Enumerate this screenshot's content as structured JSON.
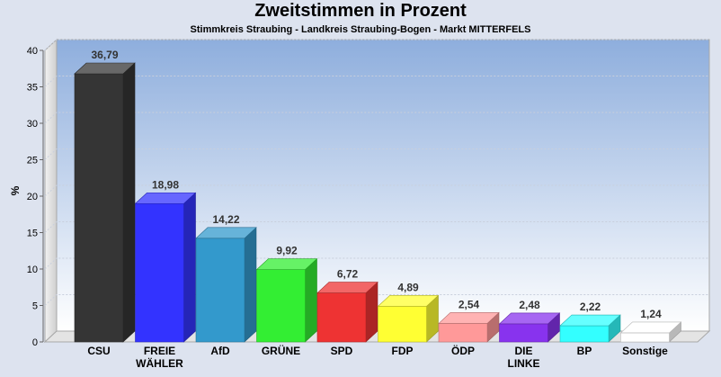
{
  "chart_data": {
    "type": "bar",
    "title": "Zweitstimmen in Prozent",
    "subtitle": "Stimmkreis Straubing - Landkreis Straubing-Bogen - Markt MITTERFELS",
    "ylabel": "%",
    "ylim": [
      0,
      40
    ],
    "yticks": [
      0,
      5,
      10,
      15,
      20,
      25,
      30,
      35,
      40
    ],
    "grid": true,
    "categories": [
      [
        "CSU"
      ],
      [
        "FREIE",
        "WÄHLER"
      ],
      [
        "AfD"
      ],
      [
        "GRÜNE"
      ],
      [
        "SPD"
      ],
      [
        "FDP"
      ],
      [
        "ÖDP"
      ],
      [
        "DIE",
        "LINKE"
      ],
      [
        "BP"
      ],
      [
        "Sonstige"
      ]
    ],
    "values": [
      36.79,
      18.98,
      14.22,
      9.92,
      6.72,
      4.89,
      2.54,
      2.48,
      2.22,
      1.24
    ],
    "value_labels": [
      "36,79",
      "18,98",
      "14,22",
      "9,92",
      "6,72",
      "4,89",
      "2,54",
      "2,48",
      "2,22",
      "1,24"
    ],
    "colors": [
      "#353535",
      "#3333ff",
      "#3399cc",
      "#33ee33",
      "#ee3333",
      "#ffff33",
      "#ff9999",
      "#8833ee",
      "#33ffff",
      "#ffffff"
    ]
  }
}
